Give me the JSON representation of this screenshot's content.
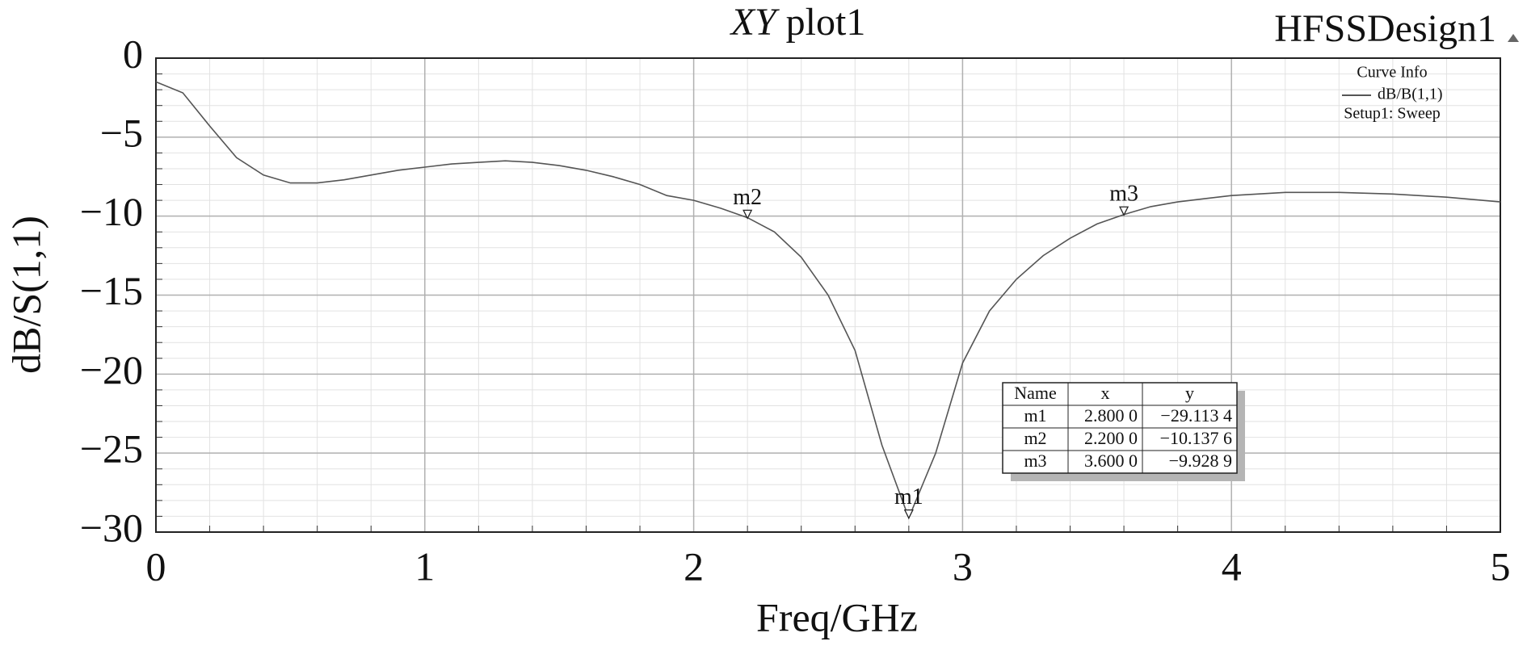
{
  "chart_data": {
    "type": "line",
    "title_prefix": "XY",
    "title": "plot1",
    "design_name": "HFSSDesign1",
    "x_label": "Freq/GHz",
    "y_label": "dB/S(1,1)",
    "legend_title": "Curve Info",
    "legend_subtitle": "Setup1: Sweep",
    "x": [
      0,
      0.1,
      0.2,
      0.3,
      0.4,
      0.5,
      0.6,
      0.7,
      0.8,
      0.9,
      1.0,
      1.1,
      1.2,
      1.3,
      1.4,
      1.5,
      1.6,
      1.7,
      1.8,
      1.9,
      2.0,
      2.1,
      2.2,
      2.3,
      2.4,
      2.5,
      2.6,
      2.7,
      2.8,
      2.9,
      3.0,
      3.1,
      3.2,
      3.3,
      3.4,
      3.5,
      3.6,
      3.7,
      3.8,
      3.9,
      4.0,
      4.2,
      4.4,
      4.6,
      4.8,
      5.0
    ],
    "series": [
      {
        "name": "dB/B(1,1)",
        "color": "#555555",
        "values": [
          -1.5,
          -2.2,
          -4.3,
          -6.3,
          -7.4,
          -7.9,
          -7.9,
          -7.7,
          -7.4,
          -7.1,
          -6.9,
          -6.7,
          -6.6,
          -6.5,
          -6.6,
          -6.8,
          -7.1,
          -7.5,
          -8.0,
          -8.7,
          -9.0,
          -9.5,
          -10.1,
          -11.0,
          -12.6,
          -15.0,
          -18.5,
          -24.5,
          -29.1,
          -25.0,
          -19.3,
          -16.0,
          -14.0,
          -12.5,
          -11.4,
          -10.5,
          -9.9,
          -9.4,
          -9.1,
          -8.9,
          -8.7,
          -8.5,
          -8.5,
          -8.6,
          -8.8,
          -9.1
        ]
      }
    ],
    "xlim": [
      0,
      5
    ],
    "ylim": [
      -30,
      0
    ],
    "xticks": [
      0,
      1,
      2,
      3,
      4,
      5
    ],
    "yticks": [
      {
        "value": -30,
        "label": "−30"
      },
      {
        "value": -25,
        "label": "−25"
      },
      {
        "value": -20,
        "label": "−20"
      },
      {
        "value": -15,
        "label": "−15"
      },
      {
        "value": -10,
        "label": "−10"
      },
      {
        "value": -5,
        "label": "−5"
      },
      0
    ],
    "x_minor_ticks": [
      0.2,
      0.4,
      0.6,
      0.8,
      1.2,
      1.4,
      1.6,
      1.8,
      2.2,
      2.4,
      2.6,
      2.8,
      3.2,
      3.4,
      3.6,
      3.8,
      4.2,
      4.4,
      4.6,
      4.8
    ],
    "y_minor_ticks": [
      -29,
      -28,
      -27,
      -26,
      -24,
      -23,
      -22,
      -21,
      -19,
      -18,
      -17,
      -16,
      -14,
      -13,
      -12,
      -11,
      -9,
      -8,
      -7,
      -6,
      -4,
      -3,
      -2,
      -1
    ],
    "grid": true,
    "table_headers": [
      "Name",
      "x",
      "y"
    ],
    "markers": [
      {
        "name": "m1",
        "x": 2.8,
        "y": -29.1134,
        "x_label": "2.800 0",
        "y_label": "−29.113 4"
      },
      {
        "name": "m2",
        "x": 2.2,
        "y": -10.1376,
        "x_label": "2.200 0",
        "y_label": "−10.137 6"
      },
      {
        "name": "m3",
        "x": 3.6,
        "y": -9.9289,
        "x_label": "3.600 0",
        "y_label": "−9.928 9"
      }
    ]
  }
}
